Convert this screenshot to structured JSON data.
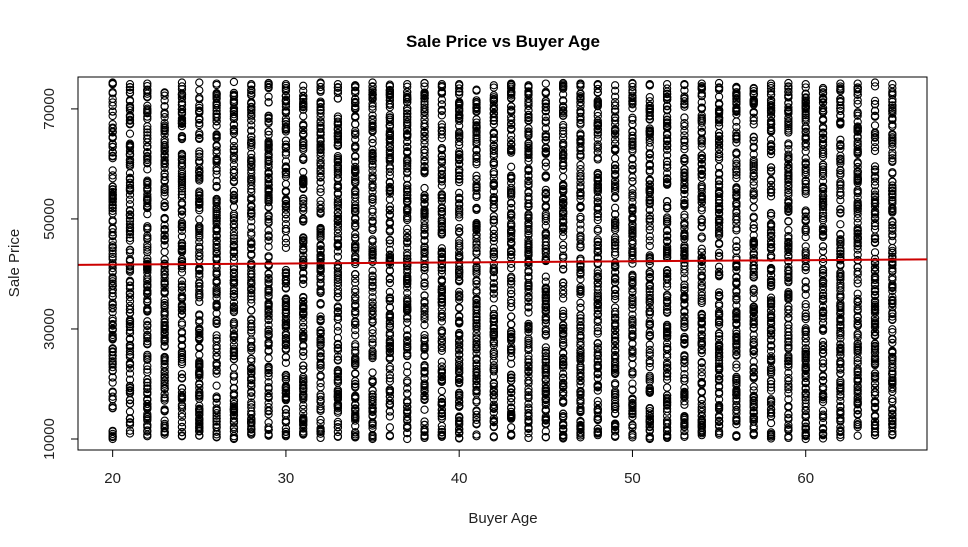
{
  "chart_data": {
    "type": "scatter",
    "title": "Sale Price vs Buyer Age",
    "xlabel": "Buyer Age",
    "ylabel": "Sale Price",
    "xlim": [
      18,
      67
    ],
    "ylim": [
      8000,
      75800
    ],
    "xticks": [
      20,
      30,
      40,
      50,
      60
    ],
    "xtick_labels": [
      "20",
      "30",
      "40",
      "50",
      "60"
    ],
    "yticks": [
      10000,
      30000,
      50000,
      70000
    ],
    "ytick_labels": [
      "10000",
      "30000",
      "50000",
      "70000"
    ],
    "grid": false,
    "legend": "none",
    "point_style": "open-circle",
    "point_color": "#000000",
    "x_values": [
      20,
      21,
      22,
      23,
      24,
      25,
      26,
      27,
      28,
      29,
      30,
      31,
      32,
      33,
      34,
      35,
      36,
      37,
      38,
      39,
      40,
      41,
      42,
      43,
      44,
      45,
      46,
      47,
      48,
      49,
      50,
      51,
      52,
      53,
      54,
      55,
      56,
      57,
      58,
      59,
      60,
      61,
      62,
      63,
      64,
      65
    ],
    "y_min": [
      10000,
      11000,
      10500,
      10800,
      10500,
      10600,
      10300,
      10000,
      10800,
      10600,
      10500,
      10800,
      10200,
      10400,
      10300,
      10000,
      10500,
      10000,
      10200,
      10400,
      10100,
      10500,
      10300,
      10600,
      10200,
      10300,
      10100,
      10300,
      10700,
      10400,
      10300,
      10000,
      10200,
      10400,
      10700,
      10800,
      10400,
      10700,
      10100,
      10200,
      10000,
      10100,
      10300,
      10600,
      10700,
      10700
    ],
    "y_max": [
      74800,
      74500,
      74600,
      73000,
      74800,
      74800,
      74600,
      74900,
      74500,
      74700,
      74500,
      74200,
      74800,
      74500,
      74300,
      74800,
      74400,
      74500,
      74700,
      74500,
      74500,
      73500,
      74300,
      74600,
      74300,
      74600,
      74700,
      74600,
      74500,
      74300,
      74700,
      74500,
      74500,
      74500,
      74600,
      74700,
      74000,
      73800,
      74600,
      74700,
      74500,
      73800,
      74600,
      74600,
      74800,
      74500
    ],
    "regression_line": {
      "color": "#cc0000",
      "x": [
        18,
        67
      ],
      "y": [
        41650,
        42650
      ]
    }
  }
}
